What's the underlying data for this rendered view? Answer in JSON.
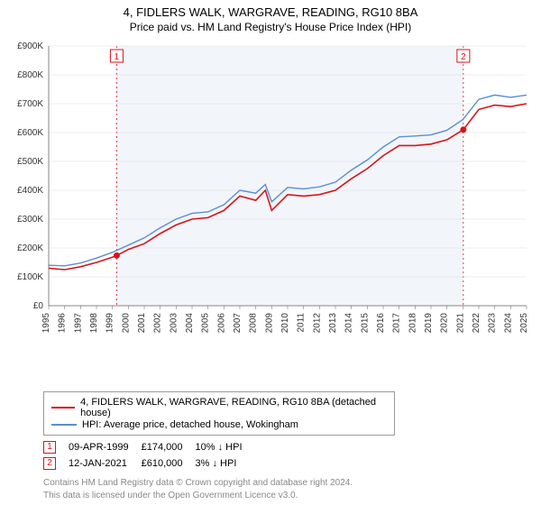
{
  "chart": {
    "title": "4, FIDLERS WALK, WARGRAVE, READING, RG10 8BA",
    "subtitle": "Price paid vs. HM Land Registry's House Price Index (HPI)",
    "type": "line",
    "background_color": "#ffffff",
    "plot_band_color": "#f2f5fa",
    "grid_color": "#dddddd",
    "axis_color": "#666666",
    "label_color": "#333333",
    "title_fontsize": 13,
    "label_fontsize": 11,
    "tick_fontsize": 10,
    "x": {
      "min": 1995,
      "max": 2025,
      "ticks": [
        1995,
        1996,
        1997,
        1998,
        1999,
        2000,
        2001,
        2002,
        2003,
        2004,
        2005,
        2006,
        2007,
        2008,
        2009,
        2010,
        2011,
        2012,
        2013,
        2014,
        2015,
        2016,
        2017,
        2018,
        2019,
        2020,
        2021,
        2022,
        2023,
        2024,
        2025
      ]
    },
    "y": {
      "min": 0,
      "max": 900000,
      "ticks": [
        0,
        100000,
        200000,
        300000,
        400000,
        500000,
        600000,
        700000,
        800000,
        900000
      ],
      "tick_labels": [
        "£0",
        "£100K",
        "£200K",
        "£300K",
        "£400K",
        "£500K",
        "£600K",
        "£700K",
        "£800K",
        "£900K"
      ]
    },
    "band": {
      "from": 1999.27,
      "to": 2021.03
    },
    "series": [
      {
        "id": "property",
        "label": "4, FIDLERS WALK, WARGRAVE, READING, RG10 8BA (detached house)",
        "color": "#d9141a",
        "line_width": 1.6,
        "data": [
          [
            1995,
            130000
          ],
          [
            1996,
            125000
          ],
          [
            1997,
            135000
          ],
          [
            1998,
            150000
          ],
          [
            1999,
            168000
          ],
          [
            1999.27,
            174000
          ],
          [
            2000,
            195000
          ],
          [
            2001,
            215000
          ],
          [
            2002,
            250000
          ],
          [
            2003,
            280000
          ],
          [
            2004,
            300000
          ],
          [
            2005,
            305000
          ],
          [
            2006,
            330000
          ],
          [
            2007,
            380000
          ],
          [
            2008,
            365000
          ],
          [
            2008.6,
            400000
          ],
          [
            2009,
            330000
          ],
          [
            2010,
            385000
          ],
          [
            2011,
            380000
          ],
          [
            2012,
            385000
          ],
          [
            2013,
            400000
          ],
          [
            2014,
            440000
          ],
          [
            2015,
            475000
          ],
          [
            2016,
            520000
          ],
          [
            2017,
            555000
          ],
          [
            2018,
            555000
          ],
          [
            2019,
            560000
          ],
          [
            2020,
            575000
          ],
          [
            2021.03,
            610000
          ],
          [
            2022,
            680000
          ],
          [
            2023,
            695000
          ],
          [
            2024,
            690000
          ],
          [
            2025,
            700000
          ]
        ]
      },
      {
        "id": "hpi",
        "label": "HPI: Average price, detached house, Wokingham",
        "color": "#5b8fce",
        "line_width": 1.4,
        "data": [
          [
            1995,
            140000
          ],
          [
            1996,
            138000
          ],
          [
            1997,
            148000
          ],
          [
            1998,
            165000
          ],
          [
            1999,
            185000
          ],
          [
            2000,
            210000
          ],
          [
            2001,
            235000
          ],
          [
            2002,
            270000
          ],
          [
            2003,
            300000
          ],
          [
            2004,
            320000
          ],
          [
            2005,
            325000
          ],
          [
            2006,
            350000
          ],
          [
            2007,
            400000
          ],
          [
            2008,
            390000
          ],
          [
            2008.6,
            420000
          ],
          [
            2009,
            360000
          ],
          [
            2010,
            410000
          ],
          [
            2011,
            405000
          ],
          [
            2012,
            412000
          ],
          [
            2013,
            428000
          ],
          [
            2014,
            470000
          ],
          [
            2015,
            505000
          ],
          [
            2016,
            550000
          ],
          [
            2017,
            585000
          ],
          [
            2018,
            588000
          ],
          [
            2019,
            592000
          ],
          [
            2020,
            608000
          ],
          [
            2021,
            645000
          ],
          [
            2022,
            715000
          ],
          [
            2023,
            730000
          ],
          [
            2024,
            722000
          ],
          [
            2025,
            730000
          ]
        ]
      }
    ],
    "markers": [
      {
        "id": "1",
        "x": 1999.27,
        "y": 174000,
        "date": "09-APR-1999",
        "price": "£174,000",
        "delta": "10% ↓ HPI",
        "color": "#d9141a"
      },
      {
        "id": "2",
        "x": 2021.03,
        "y": 610000,
        "date": "12-JAN-2021",
        "price": "£610,000",
        "delta": "3% ↓ HPI",
        "color": "#d9141a"
      }
    ]
  },
  "footer": {
    "line1": "Contains HM Land Registry data © Crown copyright and database right 2024.",
    "line2": "This data is licensed under the Open Government Licence v3.0."
  }
}
